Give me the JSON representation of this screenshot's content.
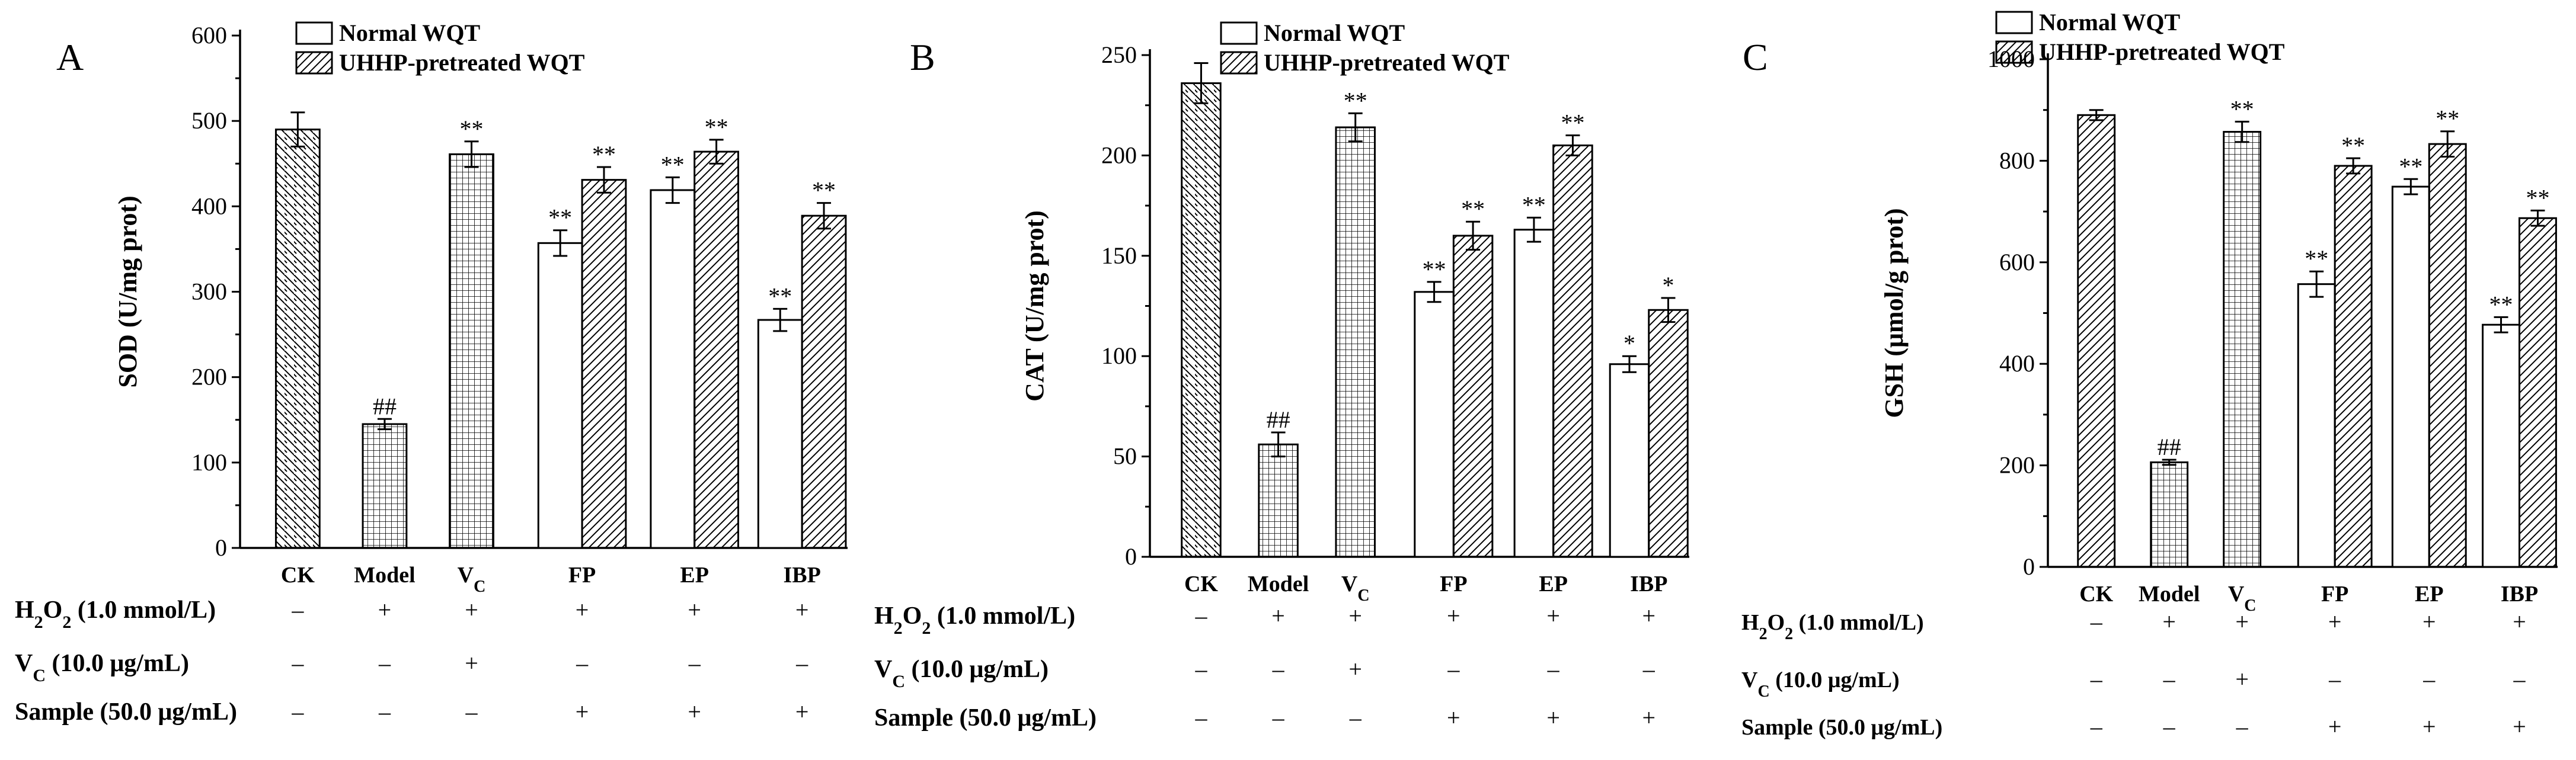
{
  "figure": {
    "condition_rows": [
      {
        "label": "H2O2 (1.0 mmol/L)",
        "marks": [
          "–",
          "+",
          "+",
          "+",
          "+",
          "+"
        ]
      },
      {
        "label": "VC (10.0 μg/mL)",
        "marks": [
          "–",
          "–",
          "+",
          "–",
          "–",
          "–"
        ]
      },
      {
        "label": "Sample (50.0 μg/mL)",
        "marks": [
          "–",
          "–",
          "–",
          "+",
          "+",
          "+"
        ]
      }
    ]
  },
  "chart_data": [
    {
      "type": "bar",
      "panel_label": "A",
      "ylabel": "SOD (U/mg prot)",
      "ylim": [
        0,
        600
      ],
      "yticks": [
        "0",
        "100",
        "200",
        "300",
        "400",
        "500",
        "600"
      ],
      "categories": [
        "CK",
        "Model",
        "VC",
        "FP",
        "EP",
        "IBP"
      ],
      "legend": [
        "Normal WQT",
        "UHHP-pretreated WQT"
      ],
      "series": [
        {
          "name": "Normal WQT",
          "values": [
            490,
            145,
            461,
            357,
            419,
            267
          ],
          "errors": [
            20,
            6,
            15,
            15,
            15,
            13
          ],
          "labels": [
            "",
            "##",
            "**",
            "**",
            "**",
            "**"
          ],
          "patterns": [
            "diag-back",
            "grid",
            "grid",
            "none",
            "none",
            "none"
          ]
        },
        {
          "name": "UHHP-pretreated WQT",
          "values": [
            null,
            null,
            null,
            431,
            464,
            389
          ],
          "errors": [
            null,
            null,
            null,
            15,
            14,
            15
          ],
          "labels": [
            "",
            "",
            "",
            "**",
            "**",
            "**"
          ],
          "patterns": [
            "",
            "",
            "",
            "diag-fwd",
            "diag-fwd",
            "diag-fwd"
          ]
        }
      ]
    },
    {
      "type": "bar",
      "panel_label": "B",
      "ylabel": "CAT (U/mg prot)",
      "ylim": [
        0,
        250
      ],
      "yticks": [
        "0",
        "50",
        "100",
        "150",
        "200",
        "250"
      ],
      "categories": [
        "CK",
        "Model",
        "VC",
        "FP",
        "EP",
        "IBP"
      ],
      "legend": [
        "Normal WQT",
        "UHHP-pretreated WQT"
      ],
      "series": [
        {
          "name": "Normal WQT",
          "values": [
            236,
            56,
            214,
            132,
            163,
            96
          ],
          "errors": [
            10,
            6,
            7,
            5,
            6,
            4
          ],
          "labels": [
            "",
            "##",
            "**",
            "**",
            "**",
            "*"
          ],
          "patterns": [
            "diag-back",
            "grid",
            "grid",
            "none",
            "none",
            "none"
          ]
        },
        {
          "name": "UHHP-pretreated WQT",
          "values": [
            null,
            null,
            null,
            160,
            205,
            123
          ],
          "errors": [
            null,
            null,
            null,
            7,
            5,
            6
          ],
          "labels": [
            "",
            "",
            "",
            "**",
            "**",
            "*"
          ],
          "patterns": [
            "",
            "",
            "",
            "diag-fwd",
            "diag-fwd",
            "diag-fwd"
          ]
        }
      ]
    },
    {
      "type": "bar",
      "panel_label": "C",
      "ylabel": "GSH (μmol/g prot)",
      "ylim": [
        0,
        1000
      ],
      "yticks": [
        "0",
        "200",
        "400",
        "600",
        "800",
        "1000"
      ],
      "categories": [
        "CK",
        "Model",
        "VC",
        "FP",
        "EP",
        "IBP"
      ],
      "legend": [
        "Normal WQT",
        "UHHP-pretreated WQT"
      ],
      "series": [
        {
          "name": "Normal WQT",
          "values": [
            890,
            206,
            857,
            557,
            749,
            477
          ],
          "errors": [
            10,
            5,
            20,
            25,
            15,
            15
          ],
          "labels": [
            "",
            "##",
            "**",
            "**",
            "**",
            "**"
          ],
          "patterns": [
            "diag-fwd",
            "grid",
            "grid",
            "none",
            "none",
            "none"
          ]
        },
        {
          "name": "UHHP-pretreated WQT",
          "values": [
            null,
            null,
            null,
            790,
            833,
            687
          ],
          "errors": [
            null,
            null,
            null,
            15,
            25,
            15
          ],
          "labels": [
            "",
            "",
            "",
            "**",
            "**",
            "**"
          ],
          "patterns": [
            "",
            "",
            "",
            "diag-fwd",
            "diag-fwd",
            "diag-fwd"
          ]
        }
      ]
    }
  ]
}
